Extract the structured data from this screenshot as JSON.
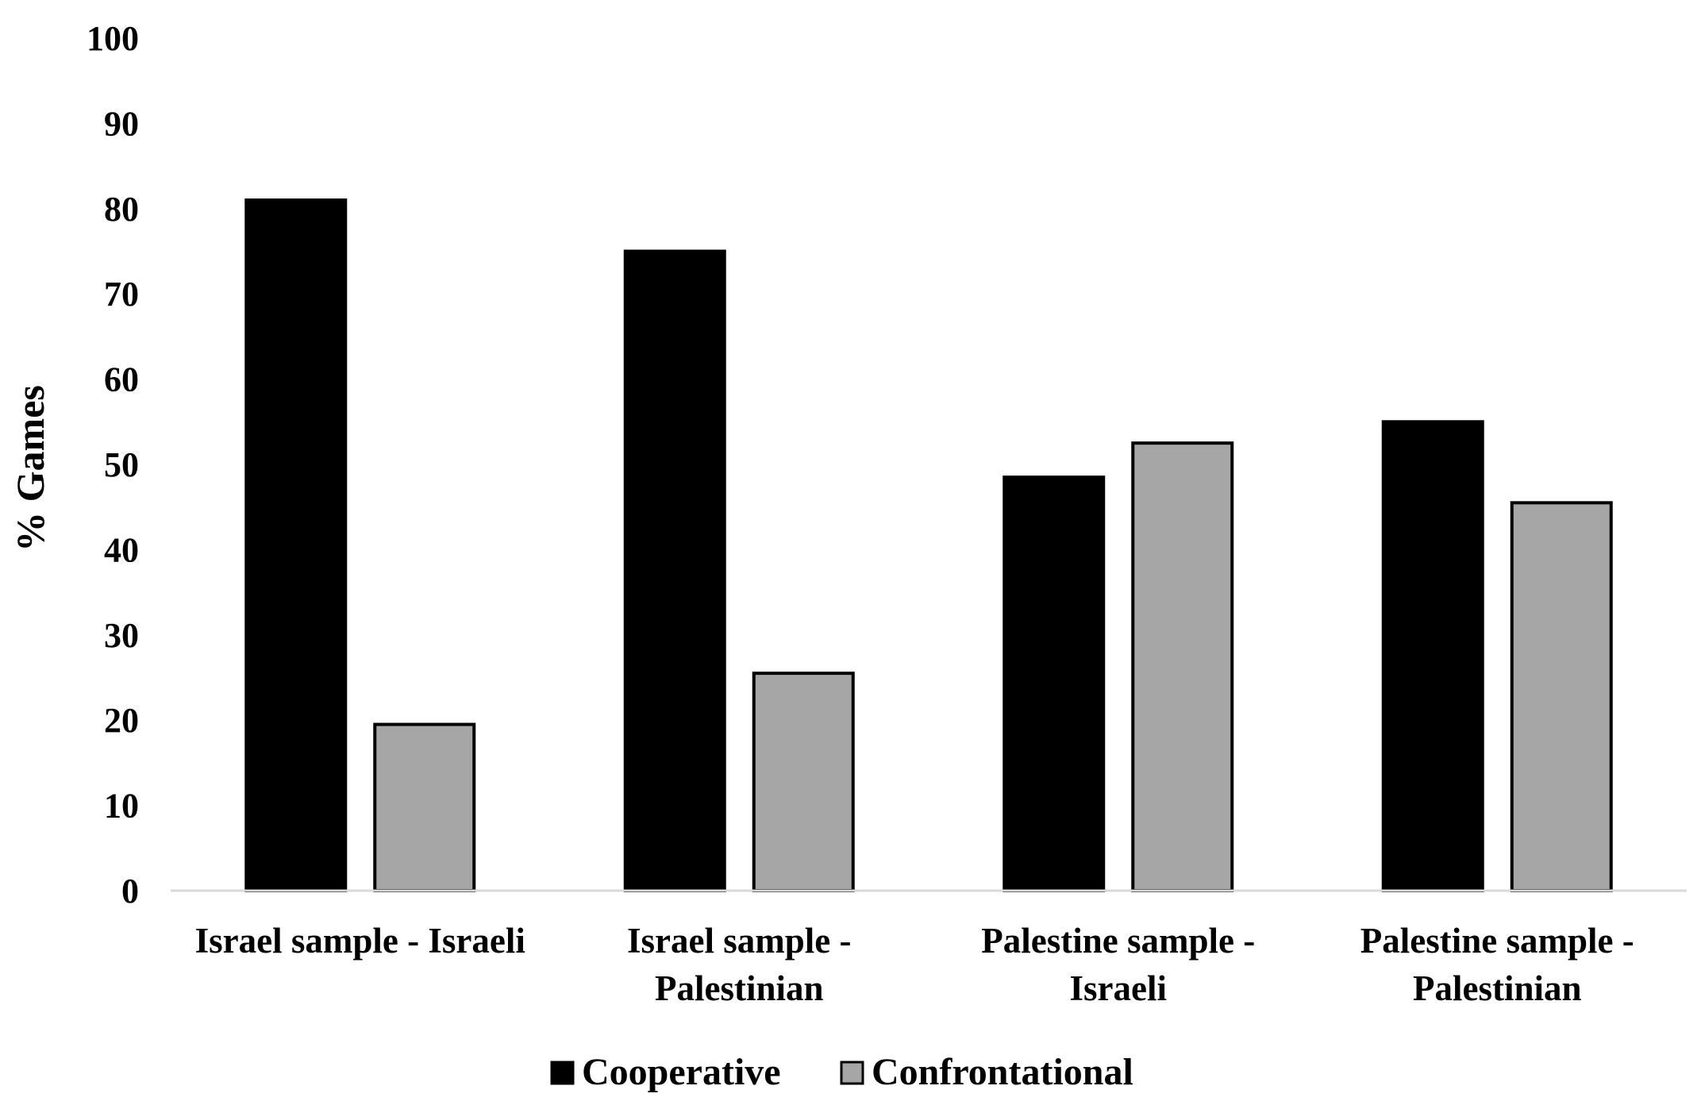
{
  "chart_data": {
    "type": "bar",
    "title": "",
    "xlabel": "",
    "ylabel": "% Games",
    "ylim": [
      0,
      100
    ],
    "yticks": [
      0,
      10,
      20,
      30,
      40,
      50,
      60,
      70,
      80,
      90,
      100
    ],
    "grid": false,
    "legend_position": "bottom",
    "categories": [
      [
        "Israel sample - Israeli"
      ],
      [
        "Israel sample -",
        "Palestinian"
      ],
      [
        "Palestine sample -",
        "Israeli"
      ],
      [
        "Palestine sample -",
        "Palestinian"
      ]
    ],
    "series": [
      {
        "name": "Cooperative",
        "color": "#000000",
        "values": [
          81,
          75,
          48.5,
          55
        ]
      },
      {
        "name": "Confrontational",
        "color": "#a6a6a6",
        "values": [
          19.5,
          25.5,
          52.5,
          45.5
        ]
      }
    ]
  }
}
